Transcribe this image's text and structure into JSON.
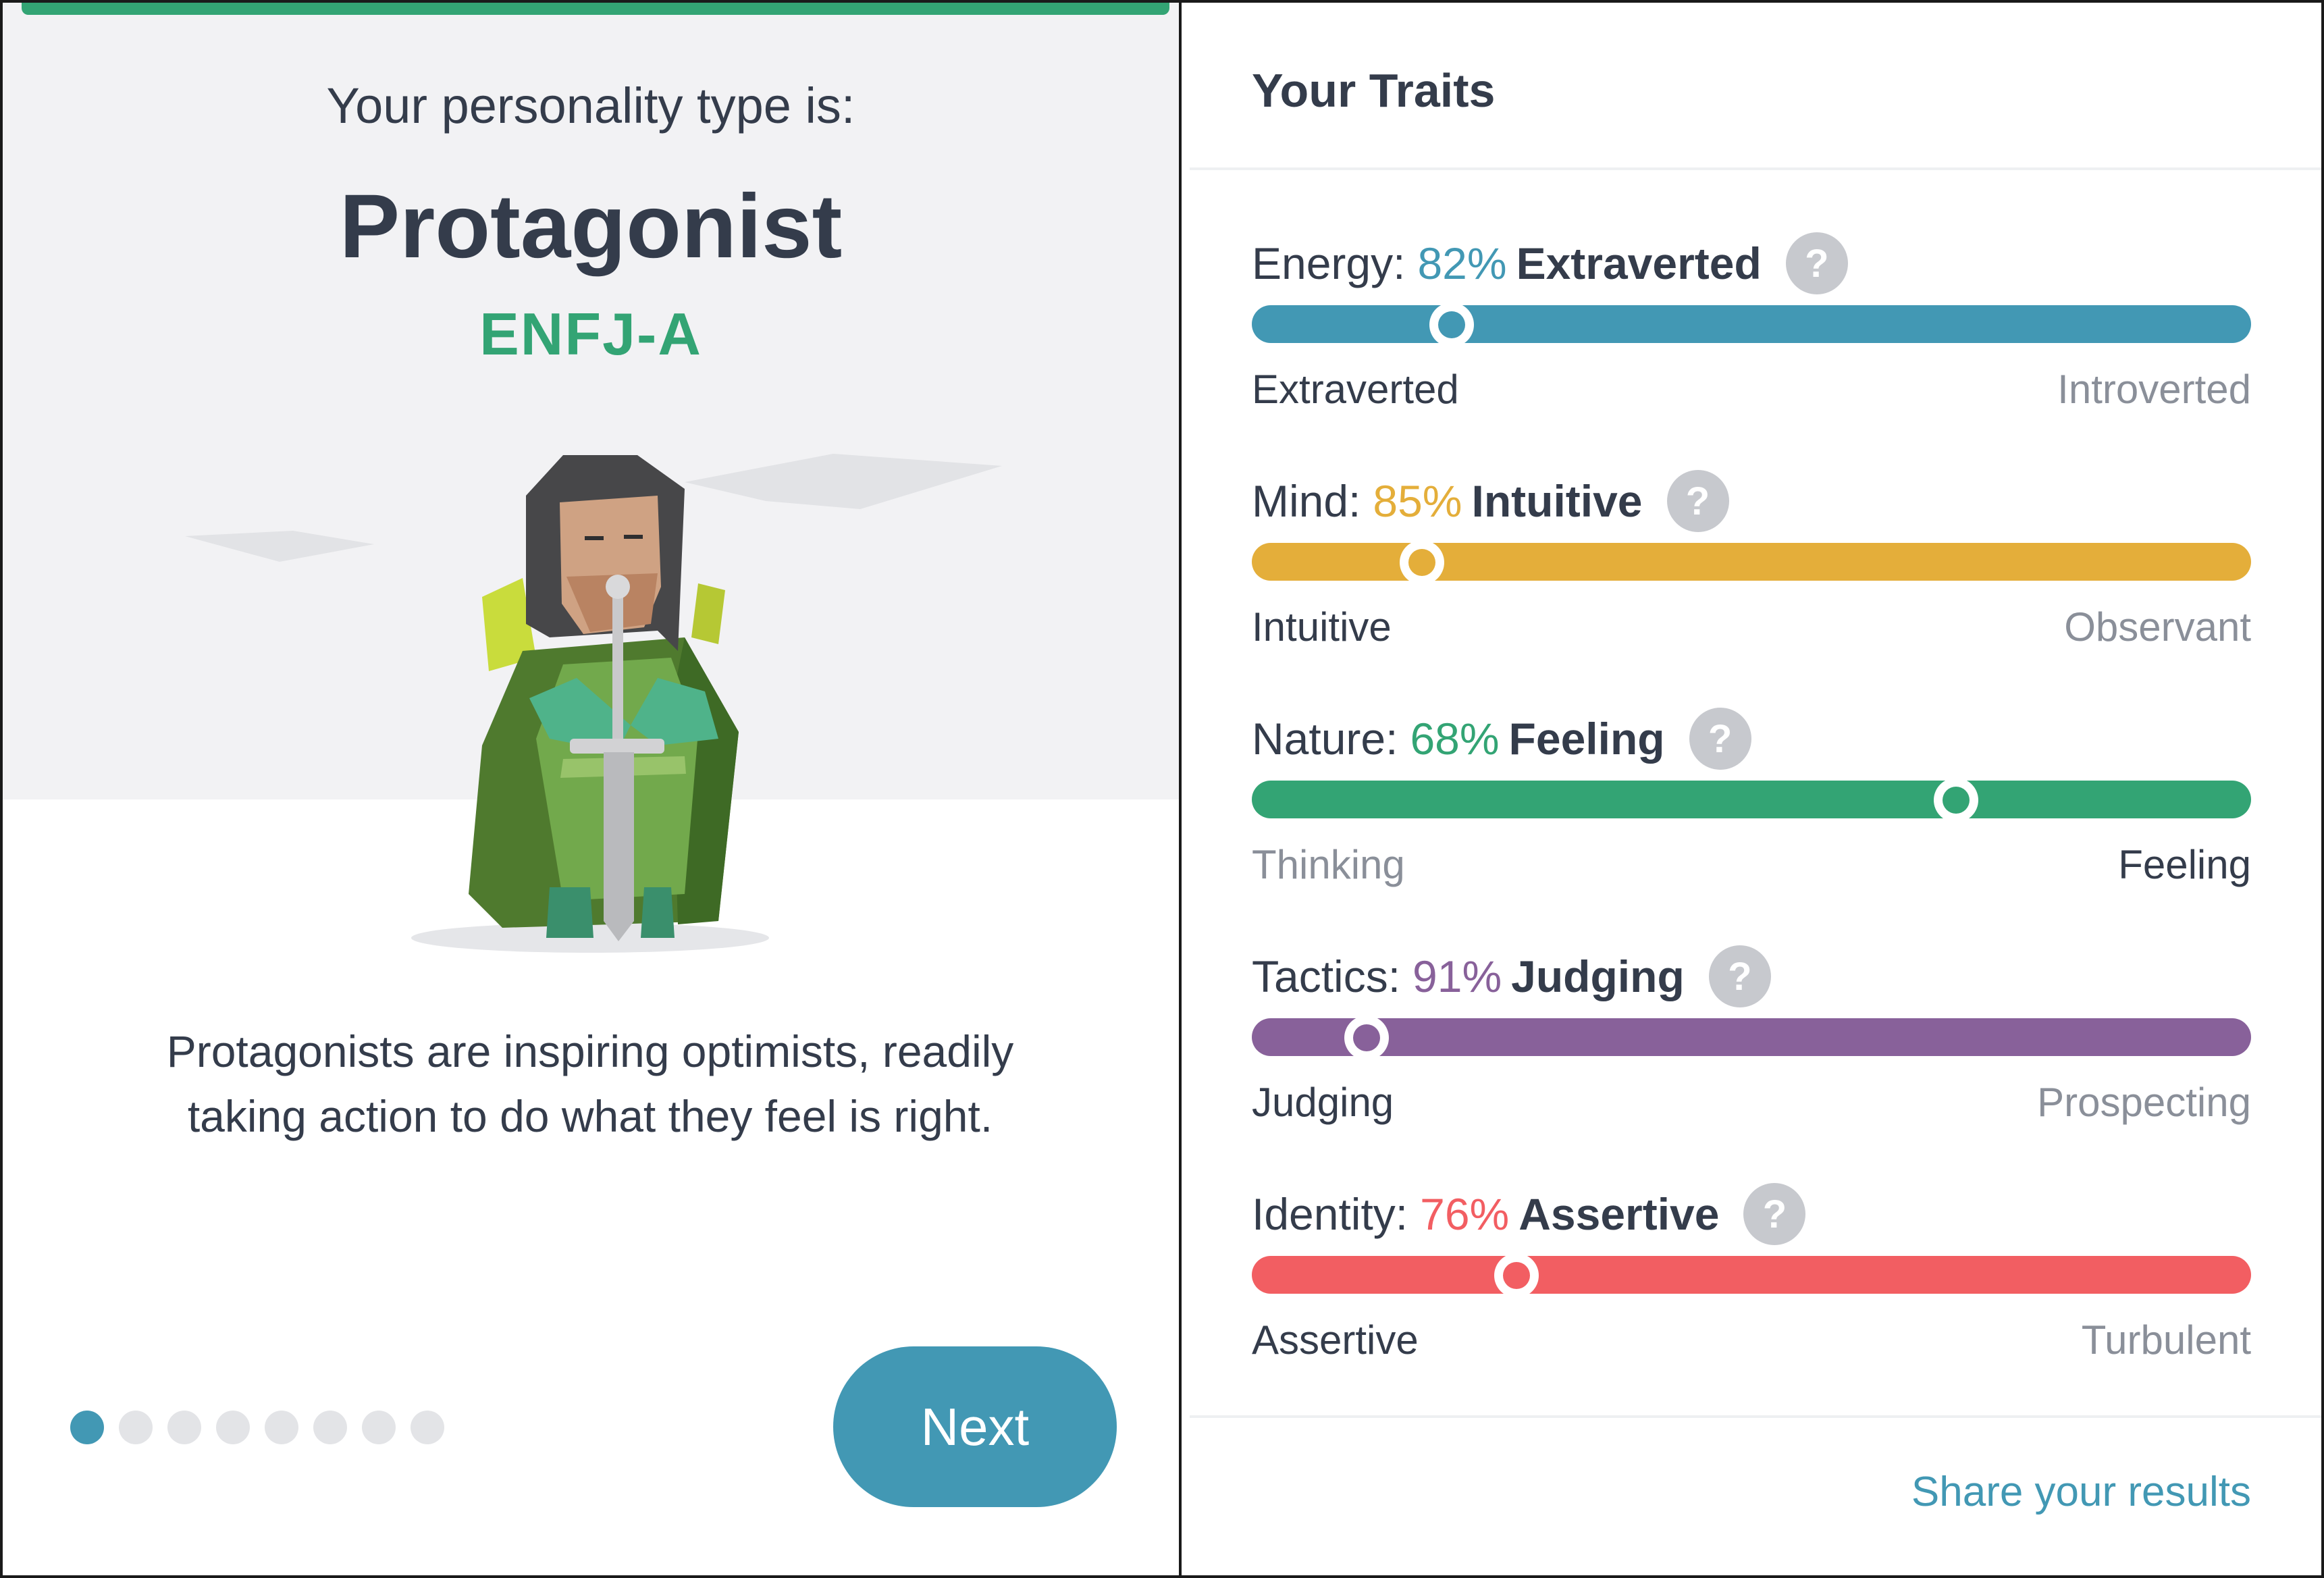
{
  "result": {
    "intro": "Your personality type is:",
    "type_name": "Protagonist",
    "type_code": "ENFJ-A",
    "description_line1": "Protagonists are inspiring optimists, readily",
    "description_line2": "taking action to do what they feel is right.",
    "illustration": "protagonist-character-with-sword",
    "pagination": {
      "total": 8,
      "current": 1
    },
    "next_label": "Next"
  },
  "traits_panel": {
    "title": "Your Traits",
    "share_label": "Share your results",
    "traits": [
      {
        "label": "Energy:",
        "percent": "82%",
        "name": "Extraverted",
        "left": "Extraverted",
        "right": "Introverted",
        "color": "#4298b4",
        "level": 0.2,
        "dominant": "left"
      },
      {
        "label": "Mind:",
        "percent": "85%",
        "name": "Intuitive",
        "left": "Intuitive",
        "right": "Observant",
        "color": "#e4ae3a",
        "level": 0.17,
        "dominant": "left"
      },
      {
        "label": "Nature:",
        "percent": "68%",
        "name": "Feeling",
        "left": "Thinking",
        "right": "Feeling",
        "color": "#33a474",
        "level": 0.705,
        "dominant": "right"
      },
      {
        "label": "Tactics:",
        "percent": "91%",
        "name": "Judging",
        "left": "Judging",
        "right": "Prospecting",
        "color": "#88619a",
        "level": 0.115,
        "dominant": "left"
      },
      {
        "label": "Identity:",
        "percent": "76%",
        "name": "Assertive",
        "left": "Assertive",
        "right": "Turbulent",
        "color": "#f25e62",
        "level": 0.265,
        "dominant": "left"
      }
    ]
  }
}
